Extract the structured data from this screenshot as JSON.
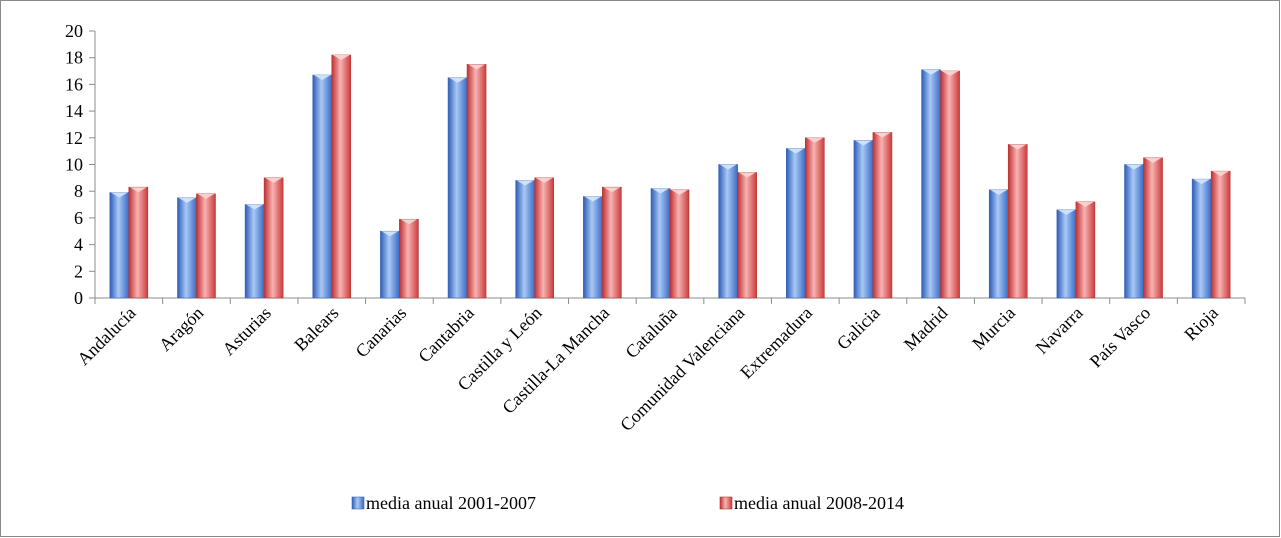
{
  "chart_data": {
    "type": "bar",
    "title": "",
    "xlabel": "",
    "ylabel": "",
    "ylim": [
      0,
      20
    ],
    "yticks": [
      0,
      2,
      4,
      6,
      8,
      10,
      12,
      14,
      16,
      18,
      20
    ],
    "grid": false,
    "legend_position": "bottom",
    "categories": [
      "Andalucía",
      "Aragón",
      "Asturias",
      "Balears",
      "Canarias",
      "Cantabria",
      "Castilla y León",
      "Castilla-La Mancha",
      "Cataluña",
      "Comunidad Valenciana",
      "Extremadura",
      "Galicia",
      "Madrid",
      "Murcia",
      "Navarra",
      "País Vasco",
      "Rioja"
    ],
    "series": [
      {
        "name": "media anual 2001-2007",
        "color": "#4a7fd4",
        "values": [
          7.9,
          7.5,
          7.0,
          16.7,
          5.0,
          16.5,
          8.8,
          7.6,
          8.2,
          10.0,
          11.2,
          11.8,
          17.1,
          8.1,
          6.6,
          10.0,
          8.9
        ]
      },
      {
        "name": "media anual 2008-2014",
        "color": "#d94a4a",
        "values": [
          8.3,
          7.8,
          9.0,
          18.2,
          5.9,
          17.5,
          9.0,
          8.3,
          8.1,
          9.4,
          12.0,
          12.4,
          17.0,
          11.5,
          7.2,
          10.5,
          9.5
        ]
      }
    ]
  }
}
